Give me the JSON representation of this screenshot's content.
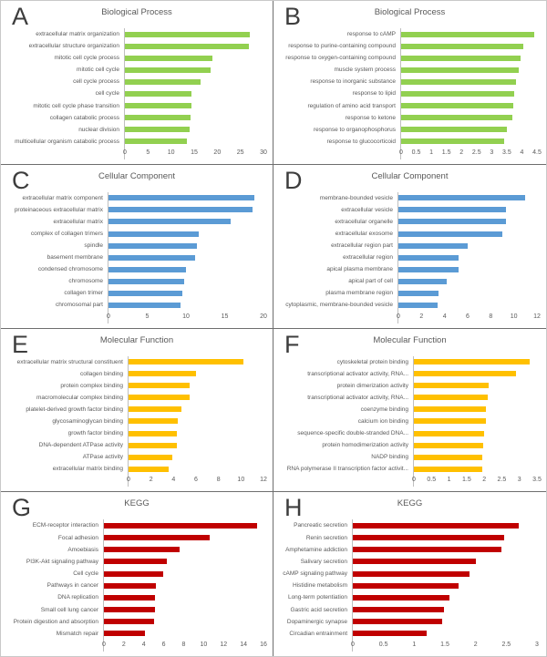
{
  "chart_data": [
    {
      "panel": "A",
      "type": "bar",
      "orientation": "horizontal",
      "title": "Biological Process",
      "color": "#92D050",
      "xlim": [
        0,
        30
      ],
      "xticks": [
        0,
        5,
        10,
        15,
        20,
        25,
        30
      ],
      "categories": [
        "extracellular matrix organization",
        "extracellular structure organization",
        "mitotic cell cycle process",
        "mitotic cell cycle",
        "cell cycle process",
        "cell cycle",
        "mitotic cell cycle phase transition",
        "collagen catabolic process",
        "nuclear division",
        "multicellular organism catabolic process"
      ],
      "values": [
        27.0,
        26.9,
        19.0,
        18.6,
        16.4,
        14.5,
        14.4,
        14.3,
        14.1,
        13.5
      ]
    },
    {
      "panel": "B",
      "type": "bar",
      "orientation": "horizontal",
      "title": "Biological Process",
      "color": "#92D050",
      "xlim": [
        0,
        4.5
      ],
      "xticks": [
        0,
        0.5,
        1,
        1.5,
        2,
        2.5,
        3,
        3.5,
        4,
        4.5
      ],
      "categories": [
        "response to cAMP",
        "response to purine-containing compound",
        "response to oxygen-containing compound",
        "muscle system process",
        "response to inorganic substance",
        "response to lipid",
        "regulation of amino acid transport",
        "response to ketone",
        "response to organophosphorus",
        "response to glucocorticoid"
      ],
      "values": [
        4.4,
        4.05,
        3.95,
        3.9,
        3.8,
        3.75,
        3.7,
        3.68,
        3.5,
        3.4
      ]
    },
    {
      "panel": "C",
      "type": "bar",
      "orientation": "horizontal",
      "title": "Cellular Component",
      "color": "#5B9BD5",
      "xlim": [
        0,
        20
      ],
      "xticks": [
        0,
        5,
        10,
        15,
        20
      ],
      "categories": [
        "extracellular matrix component",
        "proteinaceous extracellular matrix",
        "extracellular matrix",
        "complex of collagen trimers",
        "spindle",
        "basement membrane",
        "condensed chromosome",
        "chromosome",
        "collagen trimer",
        "chromosomal part"
      ],
      "values": [
        18.8,
        18.6,
        15.8,
        11.7,
        11.4,
        11.2,
        10.0,
        9.8,
        9.5,
        9.3
      ]
    },
    {
      "panel": "D",
      "type": "bar",
      "orientation": "horizontal",
      "title": "Cellular Component",
      "color": "#5B9BD5",
      "xlim": [
        0,
        12
      ],
      "xticks": [
        0,
        2,
        4,
        6,
        8,
        10,
        12
      ],
      "categories": [
        "membrane-bounded vesicle",
        "extracellular vesicle",
        "extracellular organelle",
        "extracellular exosome",
        "extracellular region part",
        "extracellular region",
        "apical plasma membrane",
        "apical part of cell",
        "plasma membrane region",
        "cytoplasmic, membrane-bounded vesicle"
      ],
      "values": [
        11.0,
        9.3,
        9.3,
        9.0,
        6.0,
        5.2,
        5.2,
        4.2,
        3.5,
        3.4
      ]
    },
    {
      "panel": "E",
      "type": "bar",
      "orientation": "horizontal",
      "title": "Molecular Function",
      "color": "#FFC000",
      "xlim": [
        0,
        12
      ],
      "xticks": [
        0,
        2,
        4,
        6,
        8,
        10,
        12
      ],
      "categories": [
        "extracellular matrix structural constituent",
        "collagen binding",
        "protein complex binding",
        "macromolecular complex binding",
        "platelet-derived growth factor binding",
        "glycosaminoglycan binding",
        "growth factor binding",
        "DNA-dependent ATPase activity",
        "ATPase activity",
        "extracellular matrix binding"
      ],
      "values": [
        10.2,
        6.0,
        5.4,
        5.4,
        4.7,
        4.4,
        4.3,
        4.3,
        3.9,
        3.6
      ]
    },
    {
      "panel": "F",
      "type": "bar",
      "orientation": "horizontal",
      "title": "Molecular Function",
      "color": "#FFC000",
      "xlim": [
        0,
        3.5
      ],
      "xticks": [
        0,
        0.5,
        1,
        1.5,
        2,
        2.5,
        3,
        3.5
      ],
      "categories": [
        "cytoskeletal protein binding",
        "transcriptional activator activity, RNA...",
        "protein dimerization activity",
        "transcriptional activator activity, RNA...",
        "coenzyme binding",
        "calcium ion binding",
        "sequence-specific double-stranded DNA...",
        "protein homodimerization activity",
        "NADP binding",
        "RNA polymerase II transcription factor activit..."
      ],
      "values": [
        3.3,
        2.9,
        2.12,
        2.1,
        2.06,
        2.05,
        2.0,
        1.98,
        1.95,
        1.95
      ]
    },
    {
      "panel": "G",
      "type": "bar",
      "orientation": "horizontal",
      "title": "KEGG",
      "color": "#C00000",
      "xlim": [
        0,
        16
      ],
      "xticks": [
        0,
        2,
        4,
        6,
        8,
        10,
        12,
        14,
        16
      ],
      "categories": [
        "ECM-receptor interaction",
        "Focal adhesion",
        "Amoebiasis",
        "PI3K-Akt signaling pathway",
        "Cell cycle",
        "Pathways in cancer",
        "DNA replication",
        "Small cell lung cancer",
        "Protein digestion and absorption",
        "Mismatch repair"
      ],
      "values": [
        15.4,
        10.6,
        7.6,
        6.3,
        5.9,
        5.2,
        5.1,
        5.1,
        5.0,
        4.1
      ]
    },
    {
      "panel": "H",
      "type": "bar",
      "orientation": "horizontal",
      "title": "KEGG",
      "color": "#C00000",
      "xlim": [
        0,
        3
      ],
      "xticks": [
        0,
        0.5,
        1,
        1.5,
        2,
        2.5,
        3
      ],
      "categories": [
        "Pancreatic secretion",
        "Renin secretion",
        "Amphetamine addiction",
        "Salivary secretion",
        "cAMP signaling pathway",
        "Histidine metabolism",
        "Long-term potentiation",
        "Gastric acid secretion",
        "Dopaminergic synapse",
        "Circadian entrainment"
      ],
      "values": [
        2.7,
        2.47,
        2.42,
        2.0,
        1.9,
        1.72,
        1.58,
        1.48,
        1.45,
        1.2
      ]
    }
  ]
}
